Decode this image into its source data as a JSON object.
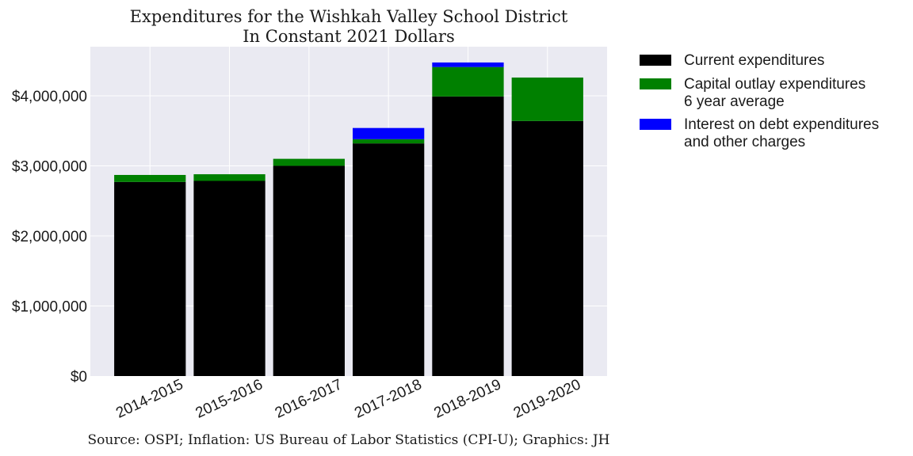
{
  "chart_data": {
    "type": "bar",
    "stacked": true,
    "title": "Expenditures for the Wishkah Valley School District",
    "subtitle": "In Constant 2021 Dollars",
    "xlabel": "",
    "ylabel": "",
    "source": "Source: OSPI; Inflation: US Bureau of Labor Statistics (CPI-U); Graphics: JH",
    "categories": [
      "2014-2015",
      "2015-2016",
      "2016-2017",
      "2017-2018",
      "2018-2019",
      "2019-2020"
    ],
    "series": [
      {
        "name": "Current expenditures",
        "color": "#000000",
        "values": [
          2770000,
          2785000,
          3000000,
          3320000,
          3990000,
          3640000
        ]
      },
      {
        "name": "Capital outlay expenditures\n6 year average",
        "color": "#008000",
        "values": [
          100000,
          95000,
          100000,
          60000,
          420000,
          620000
        ]
      },
      {
        "name": "Interest on debt expenditures\nand other charges",
        "color": "#0000ff",
        "values": [
          0,
          0,
          0,
          160000,
          65000,
          0
        ]
      }
    ],
    "ylim": [
      0,
      4700000
    ],
    "yticks": [
      0,
      1000000,
      2000000,
      3000000,
      4000000
    ],
    "ytick_labels": [
      "$0",
      "$1,000,000",
      "$2,000,000",
      "$3,000,000",
      "$4,000,000"
    ],
    "grid": true,
    "plot_background": "#eaeaf2",
    "legend_position": "outside-right-top"
  }
}
